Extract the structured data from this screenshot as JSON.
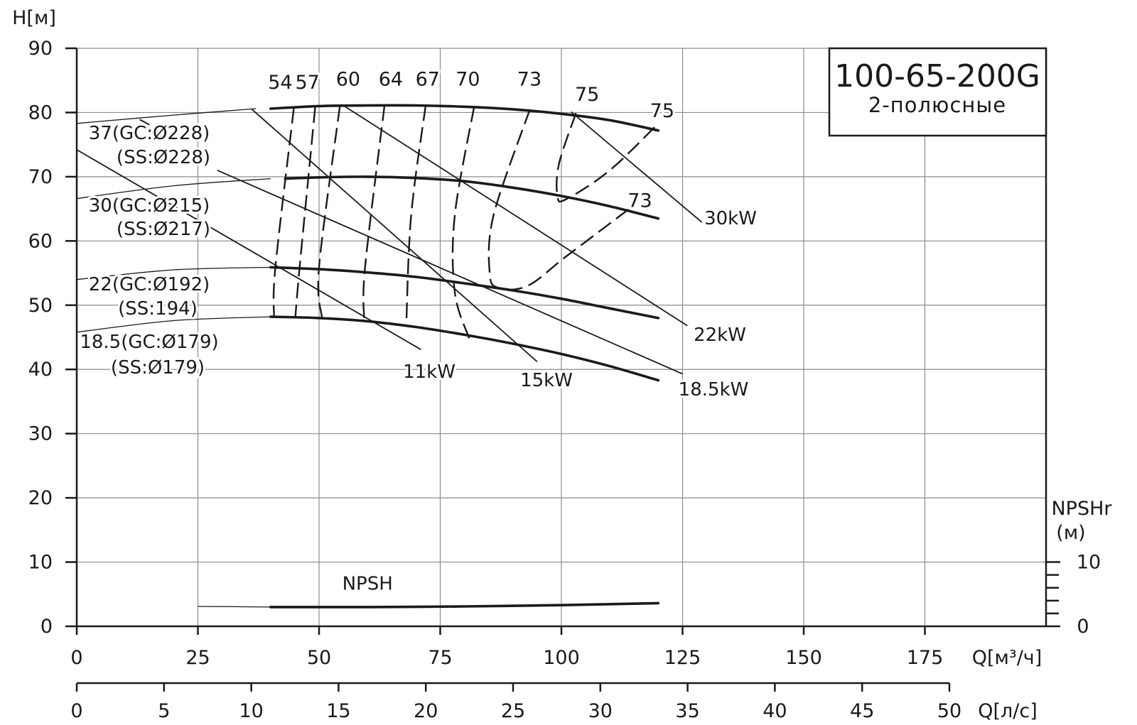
{
  "chart_data": {
    "type": "line",
    "title": "100-65-200G",
    "subtitle": "2-полюсные",
    "ylabel": "H[м]",
    "xlabel": "Q[м³/ч]",
    "xlabel2": "Q[л/с]",
    "y2label": [
      "NPSHr",
      "(м)"
    ],
    "xlim": [
      0,
      200
    ],
    "ylim": [
      0,
      90
    ],
    "xlim2": [
      0,
      50
    ],
    "y2lim": [
      0,
      10
    ],
    "x_ticks": [
      "0",
      "25",
      "50",
      "75",
      "100",
      "125",
      "150",
      "175"
    ],
    "y_ticks": [
      "0",
      "10",
      "20",
      "30",
      "40",
      "50",
      "60",
      "70",
      "80",
      "90"
    ],
    "x2_ticks": [
      "0",
      "5",
      "10",
      "15",
      "20",
      "25",
      "30",
      "35",
      "40",
      "45",
      "50"
    ],
    "y2_ticks": [
      "0",
      "10"
    ],
    "grid": true,
    "curves": [
      {
        "label": [
          "37(GC:Ø228)",
          "(SS:Ø228)"
        ],
        "extension": [
          [
            0,
            78.3
          ],
          [
            20,
            79.6
          ],
          [
            37,
            80.6
          ]
        ],
        "points": [
          [
            40,
            80.6
          ],
          [
            50,
            81.0
          ],
          [
            60,
            81.1
          ],
          [
            70,
            81.1
          ],
          [
            80,
            80.9
          ],
          [
            90,
            80.5
          ],
          [
            100,
            79.8
          ],
          [
            110,
            78.8
          ],
          [
            120,
            77.2
          ]
        ]
      },
      {
        "label": [
          "30(GC:Ø215)",
          "(SS:Ø217)"
        ],
        "extension": [
          [
            0,
            66.6
          ],
          [
            20,
            68.6
          ],
          [
            40,
            69.7
          ]
        ],
        "points": [
          [
            43,
            69.7
          ],
          [
            50,
            69.9
          ],
          [
            60,
            70.0
          ],
          [
            70,
            69.8
          ],
          [
            80,
            69.3
          ],
          [
            90,
            68.3
          ],
          [
            100,
            67.0
          ],
          [
            110,
            65.4
          ],
          [
            120,
            63.5
          ]
        ]
      },
      {
        "label": [
          "22(GC:Ø192)",
          "(SS:194)"
        ],
        "extension": [
          [
            0,
            54.0
          ],
          [
            20,
            55.5
          ],
          [
            40,
            55.9
          ]
        ],
        "points": [
          [
            40,
            55.9
          ],
          [
            50,
            55.6
          ],
          [
            60,
            55.1
          ],
          [
            70,
            54.4
          ],
          [
            80,
            53.4
          ],
          [
            90,
            52.3
          ],
          [
            100,
            51.0
          ],
          [
            110,
            49.5
          ],
          [
            120,
            48.0
          ]
        ]
      },
      {
        "label": [
          "18.5(GC:Ø179)",
          "(SS:Ø179)"
        ],
        "extension": [
          [
            0,
            45.8
          ],
          [
            20,
            47.6
          ],
          [
            40,
            48.2
          ]
        ],
        "points": [
          [
            40,
            48.2
          ],
          [
            50,
            48.0
          ],
          [
            60,
            47.5
          ],
          [
            70,
            46.6
          ],
          [
            80,
            45.4
          ],
          [
            90,
            44.0
          ],
          [
            100,
            42.4
          ],
          [
            110,
            40.5
          ],
          [
            120,
            38.3
          ]
        ]
      }
    ],
    "power_lines": [
      {
        "label": "11kW",
        "from": [
          0,
          74.2
        ],
        "to": [
          71,
          43.1
        ]
      },
      {
        "label": "15kW",
        "from": [
          36,
          80.6
        ],
        "to": [
          95,
          41.2
        ]
      },
      {
        "label": "22kW",
        "from": [
          55,
          81.1
        ],
        "to": [
          126,
          46.8
        ]
      },
      {
        "label": "30kW",
        "from": [
          102,
          80.1
        ],
        "to": [
          129,
          62.9
        ]
      },
      {
        "label": "18.5kW",
        "from": [
          29,
          71.0
        ],
        "to": [
          125,
          39.3
        ]
      }
    ],
    "efficiency_lines": [
      {
        "label": "54",
        "points": [
          [
            44.8,
            80.7
          ],
          [
            41,
            56
          ],
          [
            40.7,
            48.2
          ]
        ]
      },
      {
        "label": "57",
        "points": [
          [
            49.2,
            80.8
          ],
          [
            46,
            56
          ],
          [
            45.1,
            48.1
          ]
        ]
      },
      {
        "label": "60",
        "points": [
          [
            54.3,
            81.0
          ],
          [
            50,
            56
          ],
          [
            50.6,
            48.0
          ]
        ]
      },
      {
        "label": "64",
        "points": [
          [
            63.5,
            81.1
          ],
          [
            59.5,
            56
          ],
          [
            59.3,
            47.6
          ]
        ]
      },
      {
        "label": "67",
        "points": [
          [
            72,
            81.1
          ],
          [
            69,
            64
          ],
          [
            68,
            47.2
          ]
        ]
      },
      {
        "label": "70",
        "points": [
          [
            82,
            80.9
          ],
          [
            78,
            64
          ],
          [
            78,
            52
          ],
          [
            81,
            44.8
          ]
        ]
      },
      {
        "label": "73",
        "points": [
          [
            93.5,
            80.5
          ],
          [
            86,
            64
          ],
          [
            85.2,
            55
          ],
          [
            87,
            52.7
          ],
          [
            93,
            53
          ],
          [
            101,
            57.6
          ],
          [
            114,
            65
          ]
        ]
      },
      {
        "label": "75",
        "points": [
          [
            103,
            79.9
          ],
          [
            99.5,
            72
          ],
          [
            99.2,
            67
          ],
          [
            101,
            66.5
          ],
          [
            110,
            71
          ],
          [
            120,
            78.3
          ]
        ]
      }
    ],
    "efficiency_labels": [
      {
        "text": "54",
        "x": 42,
        "y": 83.7
      },
      {
        "text": "57",
        "x": 47.6,
        "y": 83.7
      },
      {
        "text": "60",
        "x": 56,
        "y": 84.2
      },
      {
        "text": "64",
        "x": 64.8,
        "y": 84.2
      },
      {
        "text": "67",
        "x": 72.4,
        "y": 84.2
      },
      {
        "text": "70",
        "x": 80.7,
        "y": 84.2
      },
      {
        "text": "73",
        "x": 93.4,
        "y": 84.2
      },
      {
        "text": "75",
        "x": 105.3,
        "y": 81.8
      },
      {
        "text": "75",
        "x": 120.8,
        "y": 79.3
      },
      {
        "text": "73",
        "x": 116.2,
        "y": 65.3
      }
    ],
    "npsh": {
      "label": "NPSH",
      "extension": [
        [
          25,
          3.1
        ],
        [
          40,
          3.0
        ]
      ],
      "points": [
        [
          40,
          3.0
        ],
        [
          60,
          3.0
        ],
        [
          80,
          3.1
        ],
        [
          100,
          3.3
        ],
        [
          120,
          3.6
        ]
      ]
    }
  }
}
